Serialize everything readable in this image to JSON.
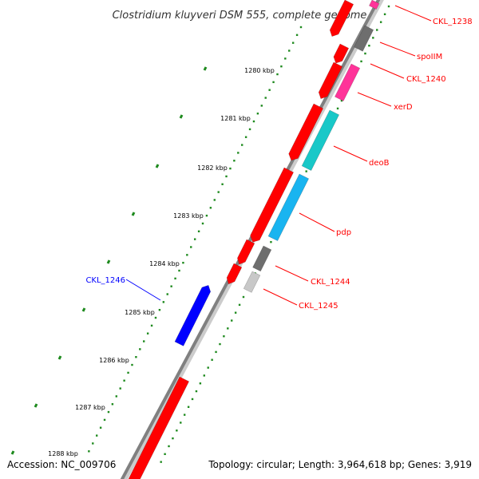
{
  "title": "Clostridium kluyveri DSM 555, complete genome",
  "footer": {
    "accession": "Accession: NC_009706",
    "stats": "Topology: circular; Length: 3,964,618 bp; Genes: 3,919"
  },
  "ruler": [
    "1280 kbp",
    "1281 kbp",
    "1282 kbp",
    "1283 kbp",
    "1284 kbp",
    "1285 kbp",
    "1286 kbp",
    "1287 kbp",
    "1288 kbp"
  ],
  "genes": [
    {
      "name": "CKL_1238",
      "color": "#ff0000",
      "strand": "forward"
    },
    {
      "name": "spoIIM",
      "color": "#ff0000",
      "strand": "forward"
    },
    {
      "name": "CKL_1240",
      "color": "#ff0000",
      "strand": "forward"
    },
    {
      "name": "xerD",
      "color": "#ff0000",
      "strand": "forward"
    },
    {
      "name": "deoB",
      "color": "#ff0000",
      "strand": "forward"
    },
    {
      "name": "pdp",
      "color": "#ff0000",
      "strand": "forward"
    },
    {
      "name": "CKL_1244",
      "color": "#ff0000",
      "strand": "forward"
    },
    {
      "name": "CKL_1245",
      "color": "#ff0000",
      "strand": "forward"
    },
    {
      "name": "CKL_1246",
      "color": "#0000ff",
      "strand": "reverse"
    }
  ],
  "colors": {
    "forward_gene": "#ff0000",
    "reverse_gene": "#0000ff",
    "backbone": "#808080",
    "tick_dots": "#1e8a1e",
    "pink_feature": "#ff3399",
    "cyan_feature": "#19c8c8",
    "sky_feature": "#19b4f0",
    "gray_feature": "#6e6e6e",
    "light_gray_feature": "#c8c8c8"
  }
}
